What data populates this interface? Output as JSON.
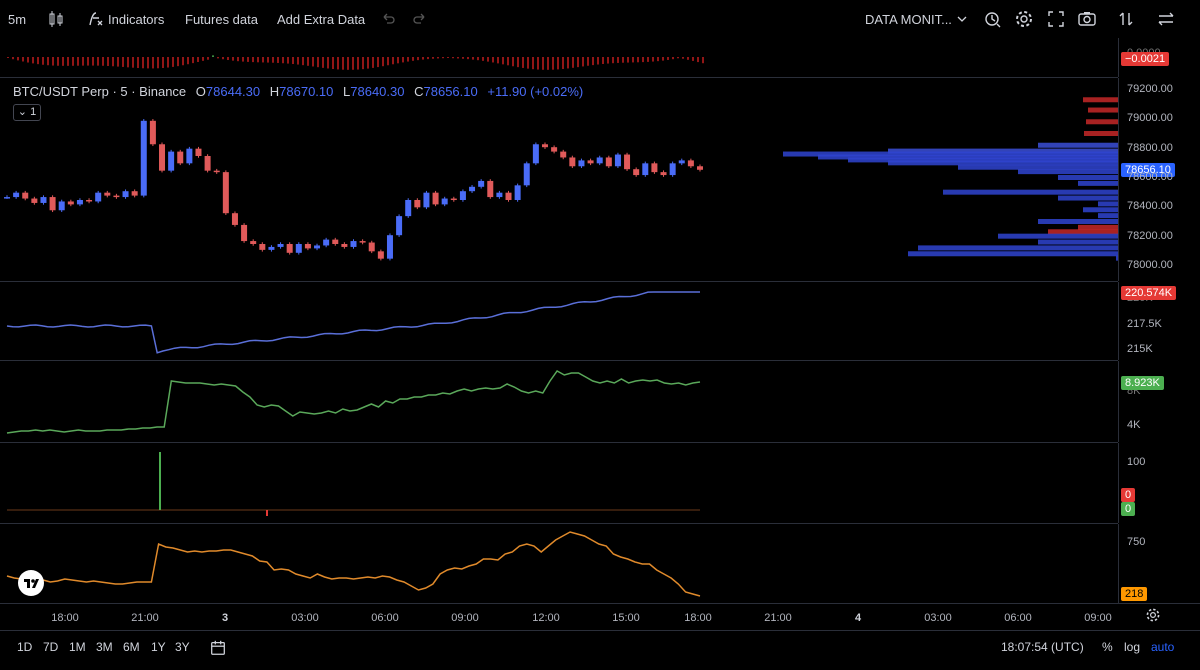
{
  "toolbar": {
    "interval": "5m",
    "indicators_label": "Indicators",
    "futures_label": "Futures data",
    "extra_label": "Add Extra Data",
    "monitor_label": "DATA MONIT...",
    "icons": [
      "candles-icon",
      "indicators-icon",
      "undo-icon",
      "redo-icon",
      "chevron-down-icon",
      "alert-icon",
      "gear-icon",
      "fullscreen-icon",
      "camera-icon",
      "compare-icon",
      "swap-icon"
    ]
  },
  "legend": {
    "symbol": "BTC/USDT Perp · 5 · Binance",
    "open_key": "O",
    "open": "78644.30",
    "high_key": "H",
    "high": "78670.10",
    "low_key": "L",
    "low": "78640.30",
    "close_key": "C",
    "close": "78656.10",
    "change": "+11.90 (+0.02%)",
    "collapse_label": "1"
  },
  "top_pane": {
    "top_label": "0.0000",
    "tag": "−0.0021",
    "tag_color": "#e53935"
  },
  "price_scale": {
    "labels": [
      "79200.00",
      "79000.00",
      "78800.00",
      "78600.00",
      "78400.00",
      "78200.00",
      "78000.00"
    ],
    "current_tag": "78656.10",
    "current_color": "#2962ff"
  },
  "pane2": {
    "labels": [
      "217.5K",
      "215K"
    ],
    "top_label": "220K",
    "tag": "220.574K",
    "tag_color": "#e53935"
  },
  "pane3": {
    "labels": [
      "4K"
    ],
    "top_label": "8K",
    "tag": "8.923K",
    "tag_color": "#4caf50"
  },
  "pane4": {
    "labels": [
      "100"
    ],
    "tag_red": "0",
    "tag_green": "0"
  },
  "pane5": {
    "labels": [
      "750"
    ],
    "tag": "218",
    "tag_color": "#ff9800"
  },
  "time_axis": {
    "labels": [
      "18:00",
      "21:00",
      "3",
      "03:00",
      "06:00",
      "09:00",
      "12:00",
      "15:00",
      "18:00",
      "21:00",
      "4",
      "03:00",
      "06:00",
      "09:00"
    ]
  },
  "bottombar": {
    "ranges": [
      "1D",
      "7D",
      "1M",
      "3M",
      "6M",
      "1Y",
      "3Y"
    ],
    "clock": "18:07:54 (UTC)",
    "percent": "%",
    "log": "log",
    "auto": "auto"
  },
  "chart_data": {
    "type": "line",
    "title": "BTC/USDT Perp · 5 · Binance",
    "y_range": [
      78000,
      79200
    ],
    "series": [
      {
        "name": "BTC/USDT Perp · 5 · Binance",
        "values": [
          78470,
          78500,
          78460,
          78430,
          78470,
          78380,
          78440,
          78420,
          78450,
          78440,
          78500,
          78480,
          78470,
          78510,
          78480,
          78990,
          78830,
          78650,
          78780,
          78700,
          78800,
          78750,
          78650,
          78640,
          78360,
          78280,
          78170,
          78150,
          78110,
          78130,
          78150,
          78090,
          78150,
          78120,
          78140,
          78180,
          78150,
          78130,
          78170,
          78160,
          78100,
          78050,
          78210,
          78340,
          78450,
          78400,
          78500,
          78420,
          78460,
          78450,
          78510,
          78540,
          78580,
          78470,
          78500,
          78450,
          78550,
          78700,
          78830,
          78810,
          78780,
          78740,
          78680,
          78720,
          78700,
          78740,
          78680,
          78760,
          78660,
          78620,
          78700,
          78640,
          78620,
          78700,
          78720,
          78680,
          78656
        ]
      }
    ]
  }
}
